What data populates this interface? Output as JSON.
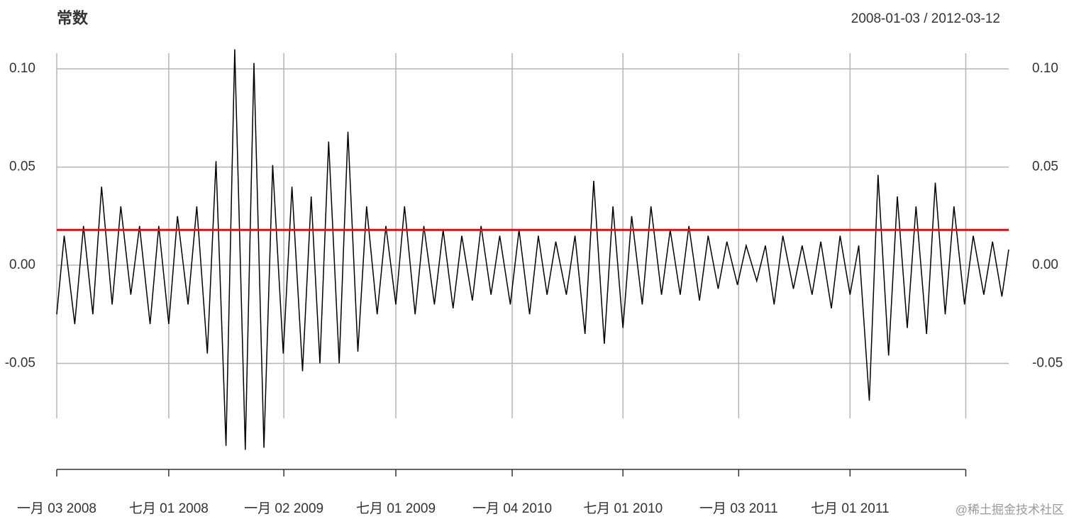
{
  "chart_data": {
    "type": "line",
    "title": "常数",
    "subtitle": "2008-01-03 / 2012-03-12",
    "x": [
      "2008-01-03",
      "2008-01-15",
      "2008-02-01",
      "2008-02-15",
      "2008-03-01",
      "2008-03-15",
      "2008-04-01",
      "2008-04-15",
      "2008-05-01",
      "2008-05-15",
      "2008-06-01",
      "2008-06-15",
      "2008-07-01",
      "2008-07-15",
      "2008-08-01",
      "2008-08-15",
      "2008-09-01",
      "2008-09-15",
      "2008-10-01",
      "2008-10-15",
      "2008-11-01",
      "2008-11-15",
      "2008-12-01",
      "2008-12-15",
      "2009-01-01",
      "2009-01-15",
      "2009-02-01",
      "2009-02-15",
      "2009-03-01",
      "2009-03-15",
      "2009-04-01",
      "2009-04-15",
      "2009-05-01",
      "2009-05-15",
      "2009-06-01",
      "2009-06-15",
      "2009-07-01",
      "2009-07-15",
      "2009-08-01",
      "2009-08-15",
      "2009-09-01",
      "2009-09-15",
      "2009-10-01",
      "2009-10-15",
      "2009-11-01",
      "2009-11-15",
      "2009-12-01",
      "2009-12-15",
      "2010-01-01",
      "2010-01-15",
      "2010-02-01",
      "2010-02-15",
      "2010-03-01",
      "2010-03-15",
      "2010-04-01",
      "2010-04-15",
      "2010-05-01",
      "2010-05-15",
      "2010-06-01",
      "2010-06-15",
      "2010-07-01",
      "2010-07-15",
      "2010-08-01",
      "2010-08-15",
      "2010-09-01",
      "2010-09-15",
      "2010-10-01",
      "2010-10-15",
      "2010-11-01",
      "2010-11-15",
      "2010-12-01",
      "2010-12-15",
      "2011-01-01",
      "2011-01-15",
      "2011-02-01",
      "2011-02-15",
      "2011-03-01",
      "2011-03-15",
      "2011-04-01",
      "2011-04-15",
      "2011-05-01",
      "2011-05-15",
      "2011-06-01",
      "2011-06-15",
      "2011-07-01",
      "2011-07-15",
      "2011-08-01",
      "2011-08-15",
      "2011-09-01",
      "2011-09-15",
      "2011-10-01",
      "2011-10-15",
      "2011-11-01",
      "2011-11-15",
      "2011-12-01",
      "2011-12-15",
      "2012-01-01",
      "2012-01-15",
      "2012-02-01",
      "2012-02-15",
      "2012-03-01",
      "2012-03-12"
    ],
    "values": [
      -0.025,
      0.015,
      -0.03,
      0.02,
      -0.025,
      0.04,
      -0.02,
      0.03,
      -0.015,
      0.02,
      -0.03,
      0.02,
      -0.03,
      0.025,
      -0.02,
      0.03,
      -0.045,
      0.053,
      -0.092,
      0.11,
      -0.094,
      0.103,
      -0.093,
      0.051,
      -0.045,
      0.04,
      -0.054,
      0.035,
      -0.05,
      0.063,
      -0.05,
      0.068,
      -0.044,
      0.03,
      -0.025,
      0.02,
      -0.02,
      0.03,
      -0.025,
      0.02,
      -0.02,
      0.018,
      -0.022,
      0.015,
      -0.018,
      0.02,
      -0.015,
      0.015,
      -0.02,
      0.018,
      -0.025,
      0.015,
      -0.015,
      0.012,
      -0.015,
      0.015,
      -0.035,
      0.043,
      -0.04,
      0.03,
      -0.032,
      0.025,
      -0.02,
      0.03,
      -0.015,
      0.018,
      -0.015,
      0.02,
      -0.018,
      0.015,
      -0.012,
      0.012,
      -0.01,
      0.01,
      -0.008,
      0.01,
      -0.02,
      0.015,
      -0.012,
      0.01,
      -0.015,
      0.012,
      -0.022,
      0.015,
      -0.015,
      0.01,
      -0.069,
      0.046,
      -0.046,
      0.035,
      -0.032,
      0.03,
      -0.035,
      0.042,
      -0.025,
      0.03,
      -0.02,
      0.015,
      -0.015,
      0.012,
      -0.016,
      0.008
    ],
    "color": "#000000",
    "hline": {
      "value": 0.018,
      "color": "#ff0000"
    },
    "xlim": [
      "2008-01-03",
      "2012-03-12"
    ],
    "xticks": [
      {
        "value": "2008-01-03",
        "label": "一月 03 2008"
      },
      {
        "value": "2008-07-01",
        "label": "七月 01 2008"
      },
      {
        "value": "2009-01-02",
        "label": "一月 02 2009"
      },
      {
        "value": "2009-07-01",
        "label": "七月 01 2009"
      },
      {
        "value": "2010-01-04",
        "label": "一月 04 2010"
      },
      {
        "value": "2010-07-01",
        "label": "七月 01 2010"
      },
      {
        "value": "2011-01-03",
        "label": "一月 03 2011"
      },
      {
        "value": "2011-07-01",
        "label": "七月 01 2011"
      },
      {
        "value": "2012-01-03",
        "label": null
      }
    ],
    "ylim": [
      -0.078,
      0.108
    ],
    "yticks": [
      {
        "value": 0.1,
        "label": "0.10"
      },
      0.05,
      {
        "value": 0,
        "label": "0.00"
      },
      -0.05
    ],
    "grid": true
  },
  "watermark": "@稀土掘金技术社区"
}
